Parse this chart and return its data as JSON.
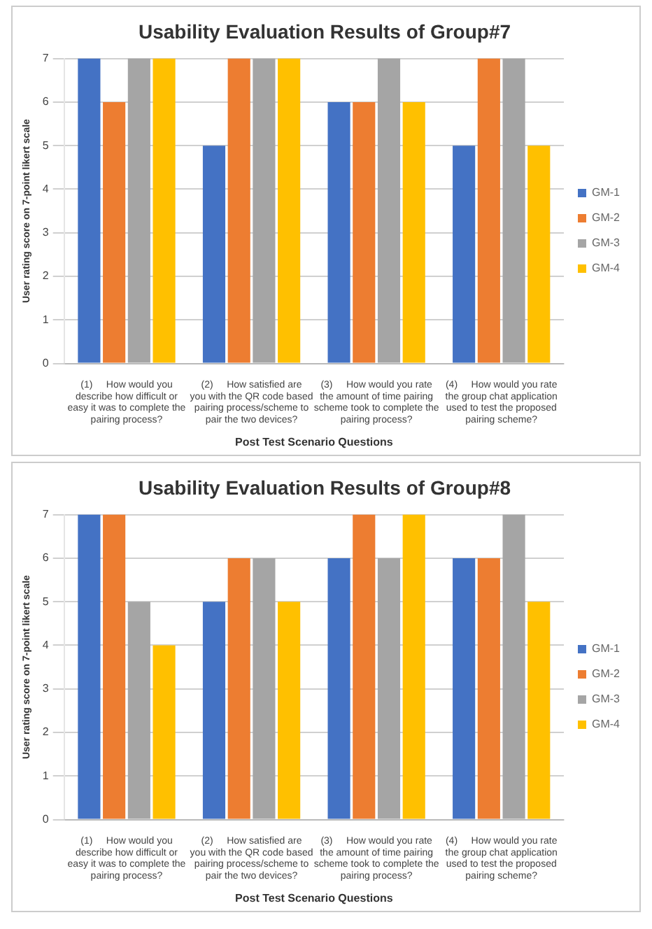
{
  "chart_data": [
    {
      "type": "bar",
      "title": "Usability Evaluation Results of Group#7",
      "xlabel": "Post Test Scenario Questions",
      "ylabel": "User rating score on 7-point likert scale",
      "categories": [
        "(1)     How would you describe how difficult or easy it was to complete the pairing process?",
        "(2)     How satisfied are you with the QR code based pairing process/scheme to pair the two devices?",
        "(3)     How would you rate the amount of time pairing scheme took to complete the pairing process?",
        "(4)     How would you rate the group chat application used to test the proposed pairing scheme?"
      ],
      "series": [
        {
          "name": "GM-1",
          "color": "#4472c4",
          "values": [
            7,
            5,
            6,
            5
          ]
        },
        {
          "name": "GM-2",
          "color": "#ed7d31",
          "values": [
            6,
            7,
            6,
            7
          ]
        },
        {
          "name": "GM-3",
          "color": "#a5a5a5",
          "values": [
            7,
            7,
            7,
            7
          ]
        },
        {
          "name": "GM-4",
          "color": "#ffc000",
          "values": [
            7,
            7,
            6,
            5
          ]
        }
      ],
      "ylim": [
        0,
        7
      ],
      "yticks": [
        0,
        1,
        2,
        3,
        4,
        5,
        6,
        7
      ],
      "grid": "y",
      "legend": "right"
    },
    {
      "type": "bar",
      "title": "Usability Evaluation Results of Group#8",
      "xlabel": "Post Test Scenario Questions",
      "ylabel": "User rating score on 7-point likert scale",
      "categories": [
        "(1)     How would you describe how difficult or easy it was to complete the pairing process?",
        "(2)     How satisfied are you with the QR code based pairing process/scheme to pair the two devices?",
        "(3)     How would you rate the amount of time pairing scheme took to complete the pairing process?",
        "(4)     How would you rate the group chat application used to test the proposed pairing scheme?"
      ],
      "series": [
        {
          "name": "GM-1",
          "color": "#4472c4",
          "values": [
            7,
            5,
            6,
            6
          ]
        },
        {
          "name": "GM-2",
          "color": "#ed7d31",
          "values": [
            7,
            6,
            7,
            6
          ]
        },
        {
          "name": "GM-3",
          "color": "#a5a5a5",
          "values": [
            5,
            6,
            6,
            7
          ]
        },
        {
          "name": "GM-4",
          "color": "#ffc000",
          "values": [
            4,
            5,
            7,
            5
          ]
        }
      ],
      "ylim": [
        0,
        7
      ],
      "yticks": [
        0,
        1,
        2,
        3,
        4,
        5,
        6,
        7
      ],
      "grid": "y",
      "legend": "right"
    }
  ]
}
